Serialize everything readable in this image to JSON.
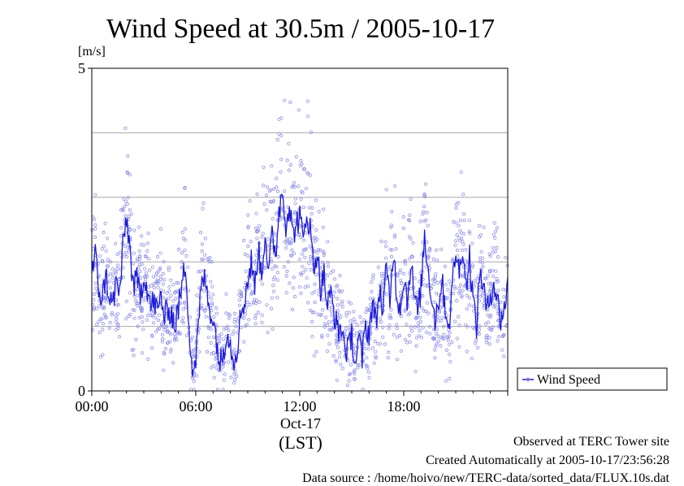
{
  "chart_data": {
    "type": "line",
    "title": "Wind Speed at 30.5m / 2005-10-17",
    "ylabel": "[m/s]",
    "xlabel": "(LST)",
    "date_label": "Oct-17",
    "x_unit": "hours since 2005-10-17 00:00 LST",
    "xlim": [
      0,
      24
    ],
    "ylim": [
      0,
      5
    ],
    "yticks": [
      {
        "value": 0,
        "label": "0"
      },
      {
        "value": 5,
        "label": "5"
      }
    ],
    "ygrid": [
      1,
      2,
      3,
      4
    ],
    "xticks": [
      {
        "value": 0,
        "label": "00:00"
      },
      {
        "value": 6,
        "label": "06:00"
      },
      {
        "value": 12,
        "label": "12:00"
      },
      {
        "value": 18,
        "label": "18:00"
      }
    ],
    "grid": "horizontal",
    "legend_position": "right",
    "series": [
      {
        "name": "Wind Speed",
        "color": "#1a1adb",
        "scatter_color": "#8c8cf0",
        "style": "line (smoothed) with raw 10 s samples as open circles",
        "x": [
          0.0,
          0.2,
          0.4,
          0.6,
          0.8,
          1.0,
          1.2,
          1.4,
          1.6,
          1.8,
          2.0,
          2.2,
          2.4,
          2.6,
          2.8,
          3.0,
          3.2,
          3.4,
          3.6,
          3.8,
          4.0,
          4.2,
          4.4,
          4.6,
          4.8,
          5.0,
          5.2,
          5.4,
          5.6,
          5.8,
          6.0,
          6.2,
          6.4,
          6.6,
          6.8,
          7.0,
          7.2,
          7.4,
          7.6,
          7.8,
          8.0,
          8.2,
          8.4,
          8.6,
          8.8,
          9.0,
          9.2,
          9.4,
          9.6,
          9.8,
          10.0,
          10.2,
          10.4,
          10.6,
          10.8,
          11.0,
          11.2,
          11.4,
          11.6,
          11.8,
          12.0,
          12.2,
          12.4,
          12.6,
          12.8,
          13.0,
          13.2,
          13.4,
          13.6,
          13.8,
          14.0,
          14.2,
          14.4,
          14.6,
          14.8,
          15.0,
          15.2,
          15.4,
          15.6,
          15.8,
          16.0,
          16.2,
          16.4,
          16.6,
          16.8,
          17.0,
          17.2,
          17.4,
          17.6,
          17.8,
          18.0,
          18.2,
          18.4,
          18.6,
          18.8,
          19.0,
          19.2,
          19.4,
          19.6,
          19.8,
          20.0,
          20.2,
          20.4,
          20.6,
          20.8,
          21.0,
          21.2,
          21.4,
          21.6,
          21.8,
          22.0,
          22.2,
          22.4,
          22.6,
          22.8,
          23.0,
          23.2,
          23.4,
          23.6,
          23.8,
          24.0
        ],
        "values": [
          1.8,
          2.1,
          1.6,
          1.4,
          1.8,
          1.5,
          1.3,
          1.7,
          1.5,
          2.2,
          2.7,
          2.2,
          1.6,
          1.7,
          1.5,
          1.8,
          1.6,
          1.3,
          1.4,
          1.2,
          1.5,
          1.1,
          1.3,
          1.2,
          1.0,
          1.3,
          1.6,
          2.0,
          1.1,
          0.3,
          0.5,
          1.2,
          1.8,
          1.6,
          1.3,
          1.1,
          0.8,
          0.4,
          0.6,
          1.0,
          0.7,
          0.5,
          0.7,
          1.2,
          1.4,
          1.7,
          2.0,
          1.6,
          2.2,
          1.8,
          2.5,
          1.8,
          2.4,
          2.1,
          2.8,
          3.1,
          2.6,
          2.9,
          2.4,
          2.6,
          2.7,
          2.3,
          2.8,
          2.5,
          1.9,
          2.2,
          1.6,
          1.8,
          1.3,
          1.5,
          1.2,
          0.9,
          1.0,
          0.7,
          0.6,
          0.9,
          0.4,
          0.8,
          0.5,
          1.0,
          0.9,
          1.4,
          1.0,
          1.6,
          1.2,
          1.9,
          1.4,
          2.2,
          1.5,
          1.3,
          1.8,
          1.4,
          2.0,
          1.5,
          1.2,
          1.6,
          2.4,
          1.9,
          1.5,
          1.1,
          1.4,
          1.7,
          1.3,
          1.0,
          1.6,
          2.2,
          1.8,
          2.3,
          1.6,
          2.1,
          1.4,
          1.0,
          1.9,
          1.6,
          1.2,
          1.5,
          1.7,
          1.4,
          1.1,
          1.3,
          1.6
        ]
      }
    ]
  },
  "footer": {
    "line1": "Observed at TERC Tower site",
    "line2": "Created Automatically at 2005-10-17/23:56:28",
    "line3": "Data source : /home/hoivo/new/TERC-data/sorted_data/FLUX.10s.dat"
  }
}
